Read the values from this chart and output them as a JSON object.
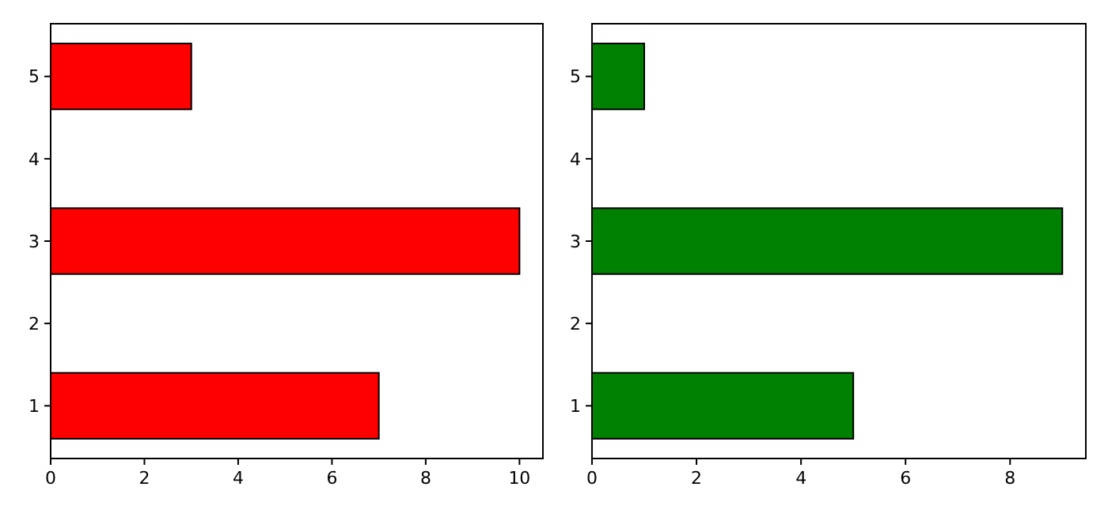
{
  "chart_data": [
    {
      "type": "bar",
      "orientation": "horizontal",
      "x": [
        1,
        3,
        5
      ],
      "values": [
        7,
        10,
        3
      ],
      "color": "#ff0000",
      "xlim": [
        0,
        10.5
      ],
      "xticks": [
        0,
        2,
        4,
        6,
        8,
        10
      ],
      "ylim": [
        0.36,
        5.64
      ],
      "yticks": [
        1,
        2,
        3,
        4,
        5
      ]
    },
    {
      "type": "bar",
      "orientation": "horizontal",
      "x": [
        1,
        3,
        5
      ],
      "values": [
        5,
        9,
        1
      ],
      "color": "#008000",
      "xlim": [
        0,
        9.45
      ],
      "xticks": [
        0,
        2,
        4,
        6,
        8
      ],
      "ylim": [
        0.36,
        5.64
      ],
      "yticks": [
        1,
        2,
        3,
        4,
        5
      ]
    }
  ]
}
